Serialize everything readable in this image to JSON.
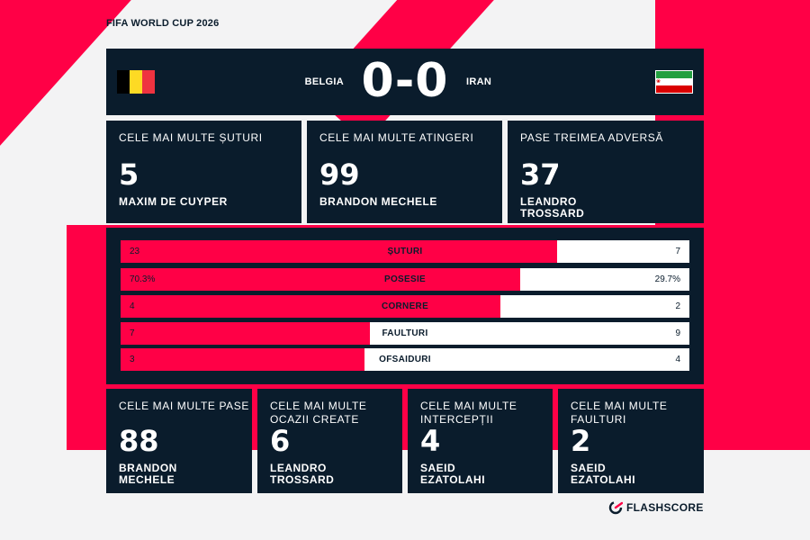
{
  "competition": "FIFA WORLD CUP 2026",
  "colors": {
    "accent": "#ff0046",
    "panel": "#0a1c2c",
    "background": "#f3f3f4"
  },
  "match": {
    "home_team": "BELGIA",
    "away_team": "IRAN",
    "score": "0-0",
    "home_flag": "belgium-flag",
    "away_flag": "iran-flag"
  },
  "top_stats": [
    {
      "label": "CELE MAI MULTE ȘUTURI",
      "value": "5",
      "player": [
        "MAXIM DE CUYPER"
      ]
    },
    {
      "label": "CELE MAI MULTE ATINGERI",
      "value": "99",
      "player": [
        "BRANDON MECHELE"
      ]
    },
    {
      "label": "PASE TREIMEA ADVERSĂ",
      "value": "37",
      "player": [
        "LEANDRO",
        "TROSSARD"
      ]
    }
  ],
  "comparison": [
    {
      "label": "ȘUTURI",
      "home": "23",
      "away": "7",
      "home_share": 0.767
    },
    {
      "label": "POSESIE",
      "home": "70.3%",
      "away": "29.7%",
      "home_share": 0.703
    },
    {
      "label": "CORNERE",
      "home": "4",
      "away": "2",
      "home_share": 0.667
    },
    {
      "label": "FAULTURI",
      "home": "7",
      "away": "9",
      "home_share": 0.4375
    },
    {
      "label": "OFSAIDURI",
      "home": "3",
      "away": "4",
      "home_share": 0.4286
    }
  ],
  "bottom_stats": [
    {
      "label": [
        "CELE MAI MULTE PASE"
      ],
      "value": "88",
      "player": [
        "BRANDON",
        "MECHELE"
      ]
    },
    {
      "label": [
        "CELE MAI MULTE",
        "OCAZII CREATE"
      ],
      "value": "6",
      "player": [
        "LEANDRO",
        "TROSSARD"
      ]
    },
    {
      "label": [
        "CELE MAI MULTE",
        "INTERCEPȚII"
      ],
      "value": "4",
      "player": [
        "SAEID",
        "EZATOLAHI"
      ]
    },
    {
      "label": [
        "CELE MAI MULTE",
        "FAULTURI"
      ],
      "value": "2",
      "player": [
        "SAEID",
        "EZATOLAHI"
      ]
    }
  ],
  "brand": {
    "name": "FLASHSCORE",
    "icon": "flashscore-logo-icon"
  }
}
